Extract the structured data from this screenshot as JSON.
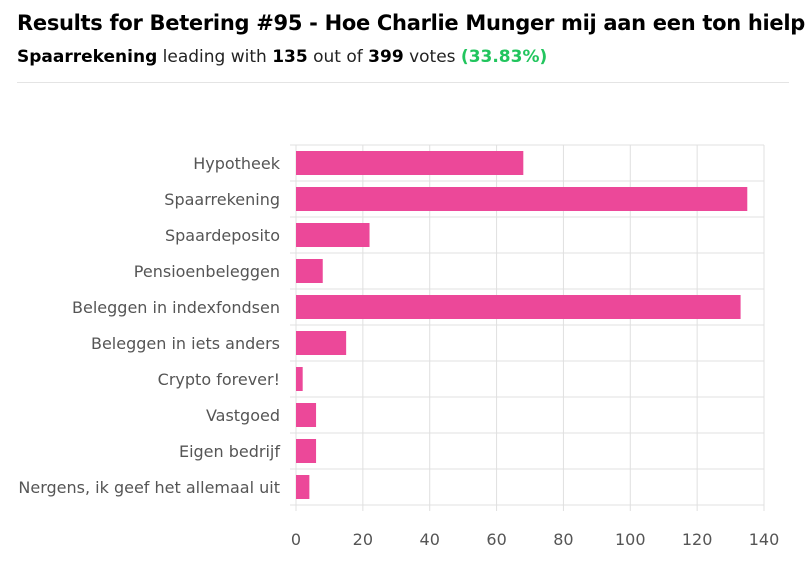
{
  "header": {
    "title": "Results for Betering #95 - Hoe Charlie Munger mij aan een ton hielp",
    "leader": "Spaarrekening",
    "text_leading_with": "leading with",
    "leader_votes": "135",
    "text_out_of": "out of",
    "total_votes": "399",
    "text_votes": "votes",
    "percentage": "(33.83%)"
  },
  "colors": {
    "bar": "#ec4899",
    "grid": "#e0e0e0",
    "percentage": "#22c55e"
  },
  "chart_data": {
    "type": "bar",
    "orientation": "horizontal",
    "categories": [
      "Hypotheek",
      "Spaarrekening",
      "Spaardeposito",
      "Pensioenbeleggen",
      "Beleggen in indexfondsen",
      "Beleggen in iets anders",
      "Crypto forever!",
      "Vastgoed",
      "Eigen bedrijf",
      "Nergens, ik geef het allemaal uit"
    ],
    "values": [
      68,
      135,
      22,
      8,
      133,
      15,
      2,
      6,
      6,
      4
    ],
    "xlim": [
      0,
      140
    ],
    "xticks": [
      0,
      20,
      40,
      60,
      80,
      100,
      120,
      140
    ],
    "grid": true,
    "legend": "none"
  }
}
